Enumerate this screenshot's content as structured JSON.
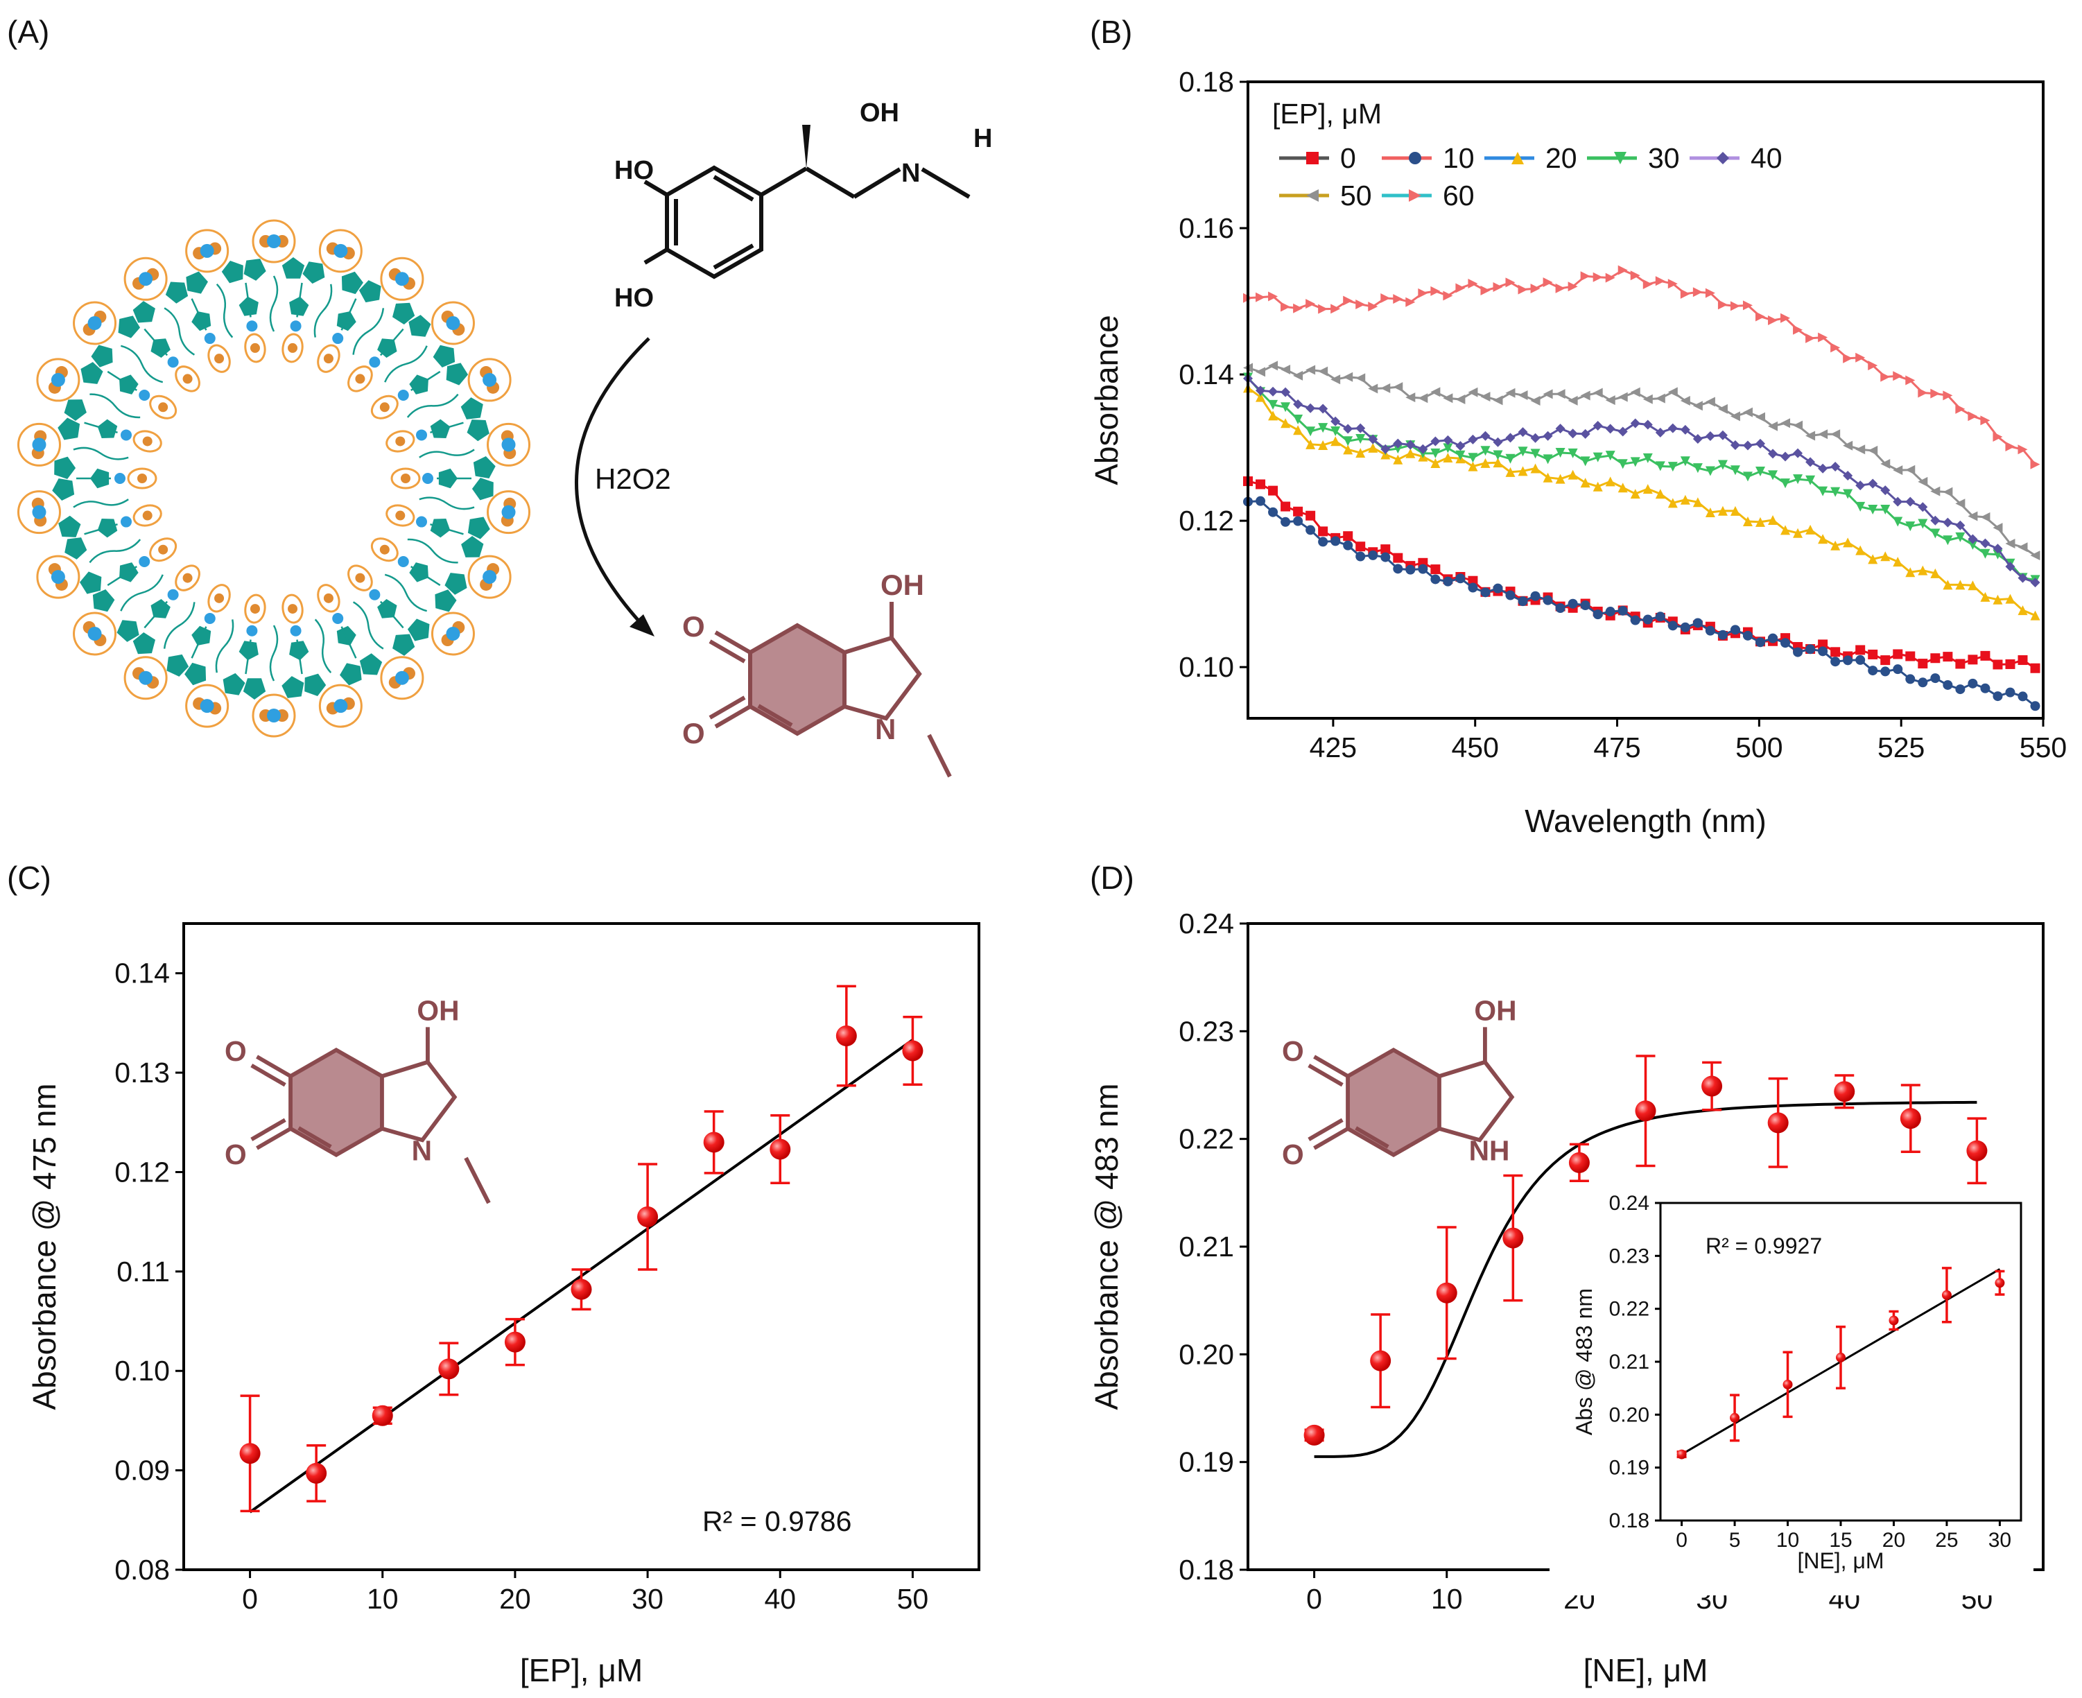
{
  "panels": {
    "A": "(A)",
    "B": "(B)",
    "C": "(C)",
    "D": "(D)"
  },
  "colors": {
    "product_brown": "#8a4a4e",
    "product_fill": "#b98a8f",
    "vesicle_teal": "#149a8c",
    "vesicle_orange": "#f0a040",
    "vesicle_blue": "#2f9fe0",
    "fit_line": "#000000",
    "marker_red": "#f01010"
  },
  "schemeA": {
    "reagent": "H2O2",
    "reactant_labels": [
      "HO",
      "HO",
      "OH",
      "H",
      "N"
    ],
    "product_labels": [
      "O",
      "O",
      "OH",
      "N"
    ]
  },
  "chart_data": [
    {
      "id": "B",
      "type": "line",
      "title": "",
      "xlabel": "Wavelength (nm)",
      "ylabel": "Absorbance",
      "xlim": [
        410,
        550
      ],
      "ylim": [
        0.093,
        0.18
      ],
      "xticks": [
        425,
        450,
        475,
        500,
        525,
        550
      ],
      "yticks": [
        0.1,
        0.12,
        0.14,
        0.16,
        0.18
      ],
      "yticks_labels": [
        "0.10",
        "0.12",
        "0.14",
        "0.16",
        "0.18"
      ],
      "legend_title": "[EP], μM",
      "legend_position": "top-left",
      "series": [
        {
          "name": "0",
          "color": "#e8101c",
          "line": "#555555",
          "marker": "square",
          "x": [
            410,
            425,
            440,
            455,
            470,
            485,
            500,
            515,
            530,
            540,
            550
          ],
          "y": [
            0.126,
            0.118,
            0.114,
            0.11,
            0.108,
            0.106,
            0.104,
            0.102,
            0.101,
            0.101,
            0.1
          ]
        },
        {
          "name": "10",
          "color": "#2a4f8a",
          "line": "#f06060",
          "marker": "circle",
          "x": [
            410,
            425,
            440,
            455,
            470,
            485,
            500,
            515,
            530,
            540,
            550
          ],
          "y": [
            0.123,
            0.117,
            0.113,
            0.11,
            0.108,
            0.106,
            0.104,
            0.101,
            0.098,
            0.097,
            0.095
          ]
        },
        {
          "name": "20",
          "color": "#f2b80c",
          "line": "#2f8ae0",
          "marker": "triangle-up",
          "x": [
            410,
            420,
            435,
            450,
            465,
            480,
            495,
            510,
            525,
            540,
            550
          ],
          "y": [
            0.138,
            0.131,
            0.129,
            0.128,
            0.126,
            0.124,
            0.121,
            0.118,
            0.114,
            0.11,
            0.107
          ]
        },
        {
          "name": "30",
          "color": "#3ac060",
          "line": "#3ac060",
          "marker": "triangle-down",
          "x": [
            410,
            420,
            435,
            450,
            465,
            480,
            495,
            510,
            525,
            540,
            550
          ],
          "y": [
            0.139,
            0.133,
            0.13,
            0.129,
            0.129,
            0.128,
            0.127,
            0.125,
            0.12,
            0.116,
            0.111
          ]
        },
        {
          "name": "40",
          "color": "#5a52a0",
          "line": "#b090e0",
          "marker": "diamond",
          "x": [
            410,
            420,
            435,
            450,
            465,
            480,
            495,
            510,
            525,
            540,
            550
          ],
          "y": [
            0.139,
            0.136,
            0.13,
            0.131,
            0.132,
            0.133,
            0.131,
            0.128,
            0.123,
            0.117,
            0.11
          ]
        },
        {
          "name": "50",
          "color": "#909090",
          "line": "#c8a020",
          "marker": "triangle-left",
          "x": [
            410,
            425,
            440,
            455,
            470,
            485,
            500,
            515,
            530,
            540,
            550
          ],
          "y": [
            0.141,
            0.14,
            0.137,
            0.137,
            0.137,
            0.137,
            0.134,
            0.131,
            0.125,
            0.12,
            0.114
          ]
        },
        {
          "name": "60",
          "color": "#f06a6a",
          "line": "#30c0c8",
          "marker": "triangle-right",
          "x": [
            410,
            420,
            435,
            450,
            465,
            475,
            490,
            505,
            520,
            535,
            550
          ],
          "y": [
            0.151,
            0.149,
            0.15,
            0.152,
            0.152,
            0.154,
            0.151,
            0.147,
            0.141,
            0.136,
            0.127
          ]
        }
      ]
    },
    {
      "id": "C",
      "type": "scatter",
      "title": "",
      "xlabel": "[EP], μM",
      "ylabel": "Absorbance @ 475 nm",
      "xlim": [
        -5,
        55
      ],
      "ylim": [
        0.08,
        0.145
      ],
      "xticks": [
        0,
        10,
        20,
        30,
        40,
        50
      ],
      "yticks": [
        0.08,
        0.09,
        0.1,
        0.11,
        0.12,
        0.13,
        0.14
      ],
      "yticks_labels": [
        "0.08",
        "0.09",
        "0.10",
        "0.11",
        "0.12",
        "0.13",
        "0.14"
      ],
      "points": {
        "x": [
          0,
          5,
          10,
          15,
          20,
          25,
          30,
          35,
          40,
          45,
          50
        ],
        "y": [
          0.0917,
          0.0897,
          0.0955,
          0.1002,
          0.1029,
          0.1082,
          0.1155,
          0.123,
          0.1223,
          0.1337,
          0.1322
        ],
        "err": [
          0.0058,
          0.0028,
          0.0008,
          0.0026,
          0.0023,
          0.002,
          0.0053,
          0.0031,
          0.0034,
          0.005,
          0.0034
        ]
      },
      "fit": {
        "type": "linear",
        "x": [
          0,
          50
        ],
        "y": [
          0.0858,
          0.1333
        ]
      },
      "annotation": "R² = 0.9786",
      "inset_labels": [
        "O",
        "O",
        "OH",
        "N"
      ]
    },
    {
      "id": "D",
      "type": "scatter",
      "title": "",
      "xlabel": "[NE], μM",
      "ylabel": "Absorbance @ 483 nm",
      "xlim": [
        -5,
        55
      ],
      "ylim": [
        0.18,
        0.24
      ],
      "xticks": [
        0,
        10,
        20,
        30,
        40,
        50
      ],
      "yticks": [
        0.18,
        0.19,
        0.2,
        0.21,
        0.22,
        0.23,
        0.24
      ],
      "yticks_labels": [
        "0.18",
        "0.19",
        "0.20",
        "0.21",
        "0.22",
        "0.23",
        "0.24"
      ],
      "points": {
        "x": [
          0,
          5,
          10,
          15,
          20,
          25,
          30,
          35,
          40,
          45,
          50
        ],
        "y": [
          0.1925,
          0.1994,
          0.2057,
          0.2108,
          0.2178,
          0.2226,
          0.2249,
          0.2215,
          0.2244,
          0.2219,
          0.2189
        ],
        "err": [
          0.0005,
          0.0043,
          0.0061,
          0.0058,
          0.0017,
          0.0051,
          0.0022,
          0.0041,
          0.0015,
          0.0031,
          0.003
        ]
      },
      "fit": {
        "type": "sigmoid",
        "x0": 0,
        "x1": 50,
        "bottom": 0.1905,
        "top": 0.2235,
        "x50": 12.5,
        "slope": 4.2
      },
      "inset_labels": [
        "O",
        "O",
        "OH",
        "NH"
      ],
      "inset_chart": {
        "type": "scatter",
        "xlabel": "[NE], μM",
        "ylabel": "Abs @ 483 nm",
        "xlim": [
          -2,
          32
        ],
        "ylim": [
          0.18,
          0.24
        ],
        "xticks": [
          0,
          5,
          10,
          15,
          20,
          25,
          30
        ],
        "yticks": [
          0.18,
          0.19,
          0.2,
          0.21,
          0.22,
          0.23,
          0.24
        ],
        "yticks_labels": [
          "0.18",
          "0.19",
          "0.20",
          "0.21",
          "0.22",
          "0.23",
          "0.24"
        ],
        "points": {
          "x": [
            0,
            5,
            10,
            15,
            20,
            25,
            30
          ],
          "y": [
            0.1925,
            0.1994,
            0.2057,
            0.2108,
            0.2178,
            0.2226,
            0.2249
          ],
          "err": [
            0.0005,
            0.0043,
            0.0061,
            0.0058,
            0.0017,
            0.0051,
            0.0022
          ]
        },
        "fit": {
          "type": "linear",
          "x": [
            0,
            30
          ],
          "y": [
            0.1925,
            0.2275
          ]
        },
        "annotation": "R² = 0.9927"
      }
    }
  ]
}
